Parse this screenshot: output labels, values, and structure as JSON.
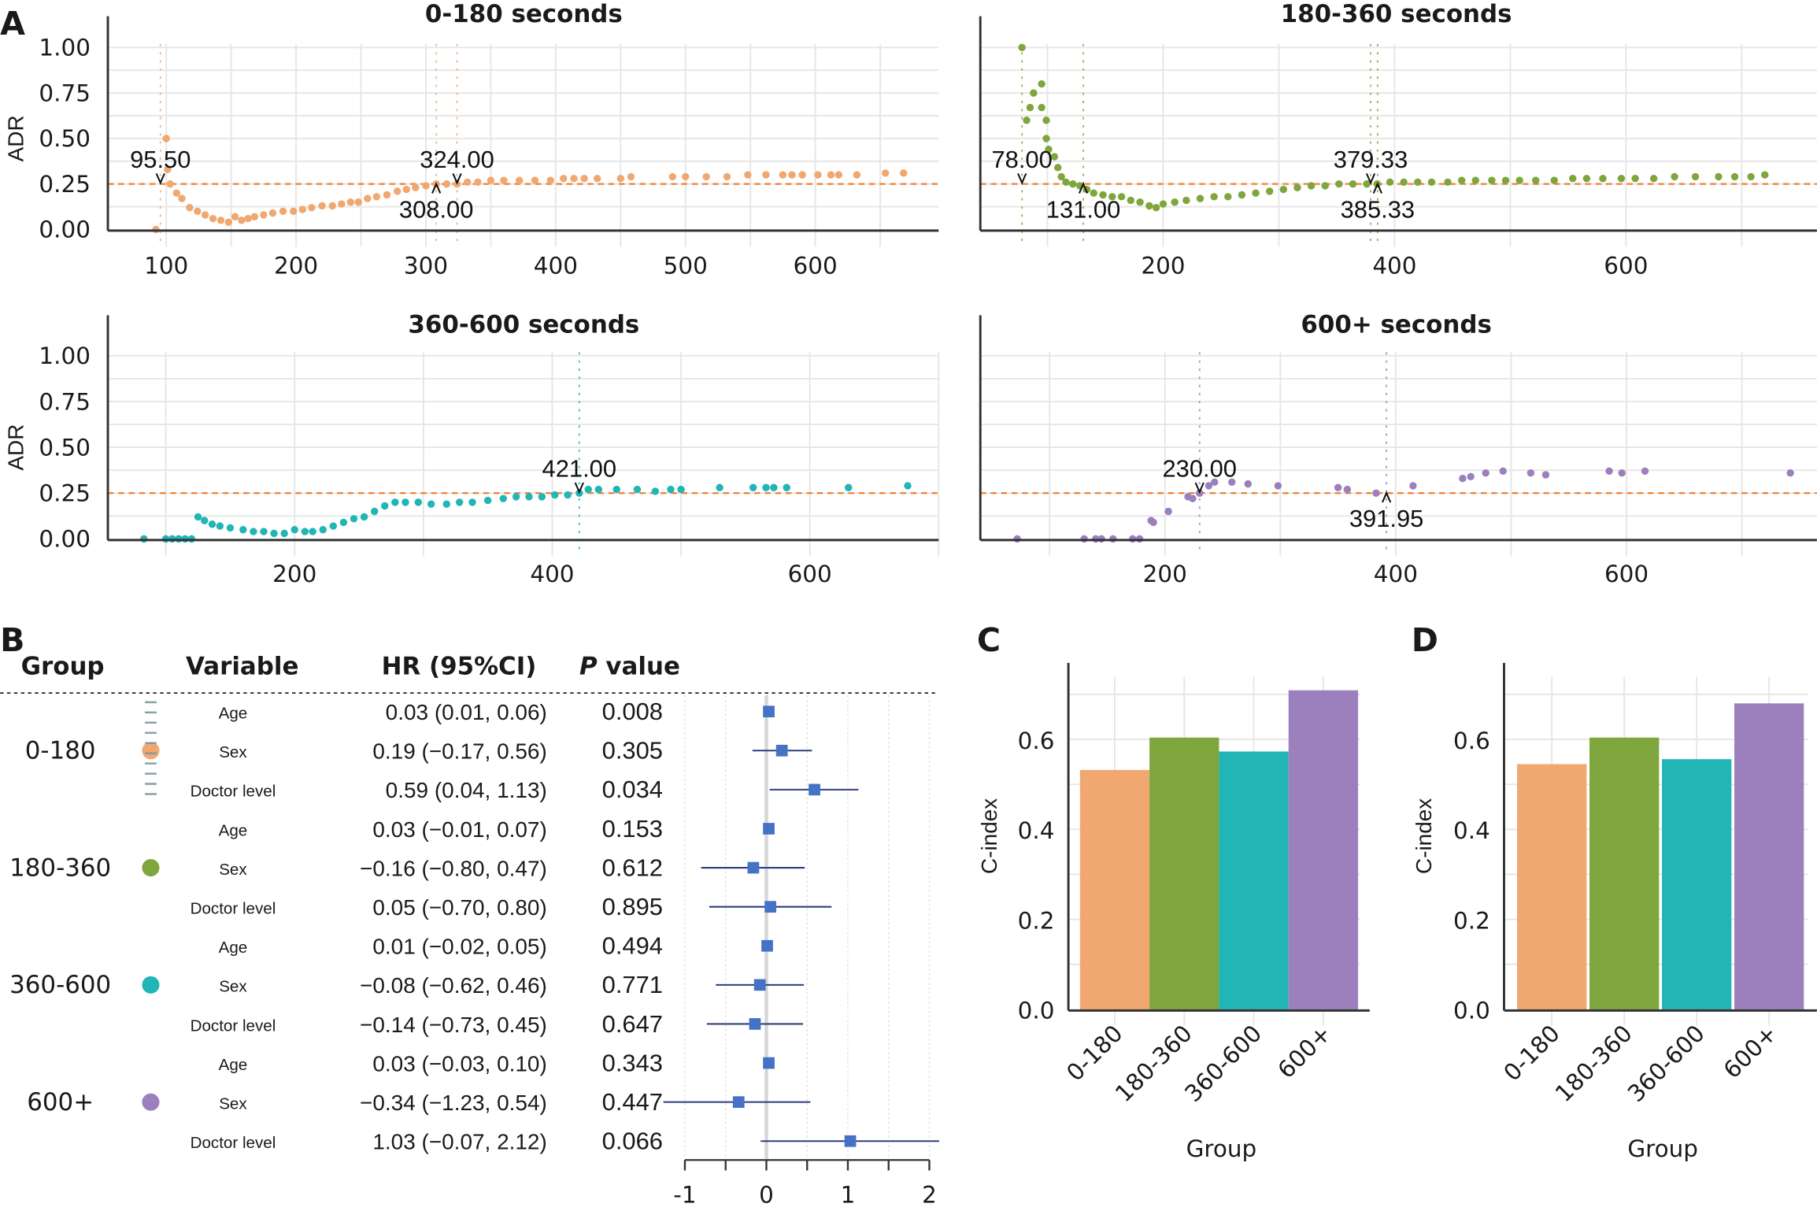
{
  "panel_labels": {
    "A": "A",
    "B": "B",
    "C": "C",
    "D": "D"
  },
  "chart_data": [
    {
      "id": "A1",
      "type": "scatter",
      "title": "0-180 seconds",
      "ylabel": "ADR",
      "xlabel": "",
      "color": "#F0A870",
      "ylim": [
        0,
        1
      ],
      "xlim": [
        55,
        695
      ],
      "xticks": [
        100,
        200,
        300,
        400,
        500,
        600
      ],
      "yticks": [
        "0.00",
        "0.25",
        "0.50",
        "0.75",
        "1.00"
      ],
      "threshold": 0.25,
      "annotations": [
        {
          "x": 95.5,
          "label": "95.50",
          "dir": "down"
        },
        {
          "x": 308.0,
          "label": "308.00",
          "dir": "up"
        },
        {
          "x": 324.0,
          "label": "324.00",
          "dir": "down"
        }
      ],
      "points": [
        [
          92,
          0.0
        ],
        [
          100,
          0.5
        ],
        [
          101,
          0.33
        ],
        [
          103,
          0.25
        ],
        [
          108,
          0.2
        ],
        [
          112,
          0.17
        ],
        [
          118,
          0.12
        ],
        [
          124,
          0.1
        ],
        [
          130,
          0.08
        ],
        [
          136,
          0.06
        ],
        [
          142,
          0.05
        ],
        [
          148,
          0.04
        ],
        [
          153,
          0.07
        ],
        [
          158,
          0.05
        ],
        [
          163,
          0.06
        ],
        [
          168,
          0.07
        ],
        [
          175,
          0.08
        ],
        [
          182,
          0.09
        ],
        [
          190,
          0.1
        ],
        [
          198,
          0.1
        ],
        [
          205,
          0.11
        ],
        [
          212,
          0.12
        ],
        [
          220,
          0.13
        ],
        [
          228,
          0.13
        ],
        [
          235,
          0.14
        ],
        [
          242,
          0.15
        ],
        [
          248,
          0.15
        ],
        [
          255,
          0.17
        ],
        [
          262,
          0.18
        ],
        [
          270,
          0.19
        ],
        [
          278,
          0.21
        ],
        [
          285,
          0.22
        ],
        [
          292,
          0.23
        ],
        [
          300,
          0.24
        ],
        [
          308,
          0.25
        ],
        [
          316,
          0.25
        ],
        [
          324,
          0.25
        ],
        [
          332,
          0.26
        ],
        [
          340,
          0.26
        ],
        [
          350,
          0.27
        ],
        [
          360,
          0.27
        ],
        [
          372,
          0.27
        ],
        [
          384,
          0.27
        ],
        [
          396,
          0.27
        ],
        [
          406,
          0.28
        ],
        [
          414,
          0.28
        ],
        [
          422,
          0.28
        ],
        [
          432,
          0.28
        ],
        [
          450,
          0.28
        ],
        [
          458,
          0.29
        ],
        [
          490,
          0.29
        ],
        [
          500,
          0.29
        ],
        [
          516,
          0.29
        ],
        [
          532,
          0.29
        ],
        [
          548,
          0.3
        ],
        [
          562,
          0.3
        ],
        [
          575,
          0.3
        ],
        [
          582,
          0.3
        ],
        [
          590,
          0.3
        ],
        [
          602,
          0.3
        ],
        [
          612,
          0.3
        ],
        [
          618,
          0.3
        ],
        [
          632,
          0.3
        ],
        [
          654,
          0.31
        ],
        [
          668,
          0.31
        ]
      ]
    },
    {
      "id": "A2",
      "type": "scatter",
      "title": "180-360 seconds",
      "ylabel": "",
      "xlabel": "",
      "color": "#7FA63D",
      "ylim": [
        0,
        1
      ],
      "xlim": [
        42,
        765
      ],
      "xticks": [
        200,
        400,
        600
      ],
      "yticks": [],
      "threshold": 0.25,
      "annotations": [
        {
          "x": 78.0,
          "label": "78.00",
          "dir": "down"
        },
        {
          "x": 131.0,
          "label": "131.00",
          "dir": "up"
        },
        {
          "x": 379.33,
          "label": "379.33",
          "dir": "down"
        },
        {
          "x": 385.33,
          "label": "385.33",
          "dir": "up"
        }
      ],
      "points": [
        [
          78,
          1.0
        ],
        [
          82,
          0.6
        ],
        [
          85,
          0.67
        ],
        [
          88,
          0.75
        ],
        [
          95,
          0.8
        ],
        [
          95,
          0.67
        ],
        [
          99,
          0.6
        ],
        [
          99,
          0.5
        ],
        [
          101,
          0.44
        ],
        [
          106,
          0.4
        ],
        [
          109,
          0.34
        ],
        [
          112,
          0.29
        ],
        [
          116,
          0.26
        ],
        [
          122,
          0.25
        ],
        [
          128,
          0.24
        ],
        [
          134,
          0.22
        ],
        [
          140,
          0.2
        ],
        [
          148,
          0.19
        ],
        [
          156,
          0.18
        ],
        [
          164,
          0.18
        ],
        [
          172,
          0.16
        ],
        [
          180,
          0.15
        ],
        [
          188,
          0.13
        ],
        [
          194,
          0.12
        ],
        [
          200,
          0.14
        ],
        [
          210,
          0.15
        ],
        [
          220,
          0.16
        ],
        [
          232,
          0.17
        ],
        [
          244,
          0.18
        ],
        [
          256,
          0.18
        ],
        [
          268,
          0.19
        ],
        [
          280,
          0.2
        ],
        [
          292,
          0.21
        ],
        [
          304,
          0.22
        ],
        [
          316,
          0.23
        ],
        [
          328,
          0.24
        ],
        [
          340,
          0.24
        ],
        [
          352,
          0.25
        ],
        [
          364,
          0.25
        ],
        [
          376,
          0.25
        ],
        [
          385,
          0.25
        ],
        [
          396,
          0.26
        ],
        [
          408,
          0.26
        ],
        [
          420,
          0.26
        ],
        [
          432,
          0.26
        ],
        [
          446,
          0.26
        ],
        [
          458,
          0.27
        ],
        [
          470,
          0.27
        ],
        [
          484,
          0.27
        ],
        [
          496,
          0.27
        ],
        [
          508,
          0.27
        ],
        [
          522,
          0.27
        ],
        [
          538,
          0.27
        ],
        [
          554,
          0.28
        ],
        [
          566,
          0.28
        ],
        [
          580,
          0.28
        ],
        [
          596,
          0.28
        ],
        [
          608,
          0.28
        ],
        [
          624,
          0.28
        ],
        [
          642,
          0.29
        ],
        [
          660,
          0.29
        ],
        [
          680,
          0.29
        ],
        [
          694,
          0.29
        ],
        [
          708,
          0.29
        ],
        [
          720,
          0.3
        ]
      ]
    },
    {
      "id": "A3",
      "type": "scatter",
      "title": "360-600 seconds",
      "ylabel": "ADR",
      "xlabel": "",
      "color": "#22B5B5",
      "ylim": [
        0,
        1
      ],
      "xlim": [
        55,
        700
      ],
      "xticks": [
        200,
        400,
        600
      ],
      "yticks": [
        "0.00",
        "0.25",
        "0.50",
        "0.75",
        "1.00"
      ],
      "threshold": 0.25,
      "annotations": [
        {
          "x": 421.0,
          "label": "421.00",
          "dir": "down"
        }
      ],
      "points": [
        [
          83,
          0.0
        ],
        [
          100,
          0.0
        ],
        [
          105,
          0.0
        ],
        [
          110,
          0.0
        ],
        [
          115,
          0.0
        ],
        [
          120,
          0.0
        ],
        [
          125,
          0.12
        ],
        [
          130,
          0.1
        ],
        [
          136,
          0.08
        ],
        [
          142,
          0.07
        ],
        [
          150,
          0.06
        ],
        [
          160,
          0.05
        ],
        [
          168,
          0.04
        ],
        [
          176,
          0.04
        ],
        [
          184,
          0.03
        ],
        [
          192,
          0.03
        ],
        [
          200,
          0.05
        ],
        [
          208,
          0.04
        ],
        [
          214,
          0.04
        ],
        [
          222,
          0.05
        ],
        [
          230,
          0.07
        ],
        [
          238,
          0.09
        ],
        [
          246,
          0.11
        ],
        [
          254,
          0.12
        ],
        [
          262,
          0.15
        ],
        [
          270,
          0.18
        ],
        [
          278,
          0.2
        ],
        [
          286,
          0.2
        ],
        [
          296,
          0.2
        ],
        [
          306,
          0.19
        ],
        [
          318,
          0.19
        ],
        [
          328,
          0.2
        ],
        [
          338,
          0.2
        ],
        [
          350,
          0.21
        ],
        [
          362,
          0.22
        ],
        [
          372,
          0.23
        ],
        [
          382,
          0.23
        ],
        [
          392,
          0.23
        ],
        [
          402,
          0.24
        ],
        [
          412,
          0.24
        ],
        [
          421,
          0.25
        ],
        [
          428,
          0.27
        ],
        [
          436,
          0.27
        ],
        [
          450,
          0.27
        ],
        [
          466,
          0.27
        ],
        [
          480,
          0.26
        ],
        [
          492,
          0.27
        ],
        [
          500,
          0.27
        ],
        [
          530,
          0.28
        ],
        [
          556,
          0.28
        ],
        [
          566,
          0.28
        ],
        [
          572,
          0.28
        ],
        [
          582,
          0.28
        ],
        [
          630,
          0.28
        ],
        [
          676,
          0.29
        ]
      ]
    },
    {
      "id": "A4",
      "type": "scatter",
      "title": "600+ seconds",
      "ylabel": "",
      "xlabel": "",
      "color": "#9B80BD",
      "ylim": [
        0,
        1
      ],
      "xlim": [
        40,
        765
      ],
      "xticks": [
        200,
        400,
        600
      ],
      "yticks": [],
      "threshold": 0.25,
      "annotations": [
        {
          "x": 230.0,
          "label": "230.00",
          "dir": "down"
        },
        {
          "x": 391.95,
          "label": "391.95",
          "dir": "up"
        }
      ],
      "points": [
        [
          72,
          0.0
        ],
        [
          130,
          0.0
        ],
        [
          140,
          0.0
        ],
        [
          145,
          0.0
        ],
        [
          155,
          0.0
        ],
        [
          172,
          0.0
        ],
        [
          178,
          0.0
        ],
        [
          188,
          0.1
        ],
        [
          190,
          0.09
        ],
        [
          203,
          0.15
        ],
        [
          220,
          0.23
        ],
        [
          224,
          0.22
        ],
        [
          230,
          0.25
        ],
        [
          238,
          0.29
        ],
        [
          243,
          0.31
        ],
        [
          258,
          0.31
        ],
        [
          272,
          0.3
        ],
        [
          298,
          0.29
        ],
        [
          350,
          0.28
        ],
        [
          358,
          0.27
        ],
        [
          383,
          0.25
        ],
        [
          415,
          0.29
        ],
        [
          458,
          0.33
        ],
        [
          465,
          0.34
        ],
        [
          478,
          0.36
        ],
        [
          493,
          0.37
        ],
        [
          517,
          0.36
        ],
        [
          530,
          0.35
        ],
        [
          585,
          0.37
        ],
        [
          596,
          0.36
        ],
        [
          616,
          0.37
        ],
        [
          742,
          0.36
        ]
      ]
    },
    {
      "id": "B",
      "type": "table",
      "headers": {
        "group": "Group",
        "variable": "Variable",
        "hr": "HR (95%CI)",
        "p_italic": "P",
        "p_rest": " value"
      },
      "axis": {
        "xlim": [
          -1,
          2
        ],
        "ticks": [
          "-1",
          "0",
          "1",
          "2"
        ],
        "ref": 0
      },
      "groups": [
        {
          "name": "0-180",
          "color": "#F0A870",
          "rows": [
            {
              "variable": "Age",
              "hr_text": "0.03 (0.01, 0.06)",
              "hr": 0.03,
              "lo": 0.01,
              "hi": 0.06,
              "p": "0.008",
              "significant": true
            },
            {
              "variable": "Sex",
              "hr_text": "0.19 (−0.17, 0.56)",
              "hr": 0.19,
              "lo": -0.17,
              "hi": 0.56,
              "p": "0.305",
              "significant": false
            },
            {
              "variable": "Doctor level",
              "hr_text": "0.59 (0.04, 1.13)",
              "hr": 0.59,
              "lo": 0.04,
              "hi": 1.13,
              "p": "0.034",
              "significant": true
            }
          ]
        },
        {
          "name": "180-360",
          "color": "#7FA63D",
          "rows": [
            {
              "variable": "Age",
              "hr_text": "0.03 (−0.01, 0.07)",
              "hr": 0.03,
              "lo": -0.01,
              "hi": 0.07,
              "p": "0.153",
              "significant": false
            },
            {
              "variable": "Sex",
              "hr_text": "−0.16 (−0.80, 0.47)",
              "hr": -0.16,
              "lo": -0.8,
              "hi": 0.47,
              "p": "0.612",
              "significant": false
            },
            {
              "variable": "Doctor level",
              "hr_text": "0.05 (−0.70, 0.80)",
              "hr": 0.05,
              "lo": -0.7,
              "hi": 0.8,
              "p": "0.895",
              "significant": false
            }
          ]
        },
        {
          "name": "360-600",
          "color": "#22B5B5",
          "rows": [
            {
              "variable": "Age",
              "hr_text": "0.01 (−0.02, 0.05)",
              "hr": 0.01,
              "lo": -0.02,
              "hi": 0.05,
              "p": "0.494",
              "significant": false
            },
            {
              "variable": "Sex",
              "hr_text": "−0.08 (−0.62, 0.46)",
              "hr": -0.08,
              "lo": -0.62,
              "hi": 0.46,
              "p": "0.771",
              "significant": false
            },
            {
              "variable": "Doctor level",
              "hr_text": "−0.14 (−0.73, 0.45)",
              "hr": -0.14,
              "lo": -0.73,
              "hi": 0.45,
              "p": "0.647",
              "significant": false
            }
          ]
        },
        {
          "name": "600+",
          "color": "#9B80BD",
          "rows": [
            {
              "variable": "Age",
              "hr_text": "0.03 (−0.03, 0.10)",
              "hr": 0.03,
              "lo": -0.03,
              "hi": 0.1,
              "p": "0.343",
              "significant": false
            },
            {
              "variable": "Sex",
              "hr_text": "−0.34 (−1.23, 0.54)",
              "hr": -0.34,
              "lo": -1.23,
              "hi": 0.54,
              "p": "0.447",
              "significant": false
            },
            {
              "variable": "Doctor level",
              "hr_text": "1.03 (−0.07, 2.12)",
              "hr": 1.03,
              "lo": -0.07,
              "hi": 2.12,
              "p": "0.066",
              "significant": false
            }
          ]
        }
      ],
      "marker_color": "#4472C4",
      "ci_color": "#2E3E7E",
      "significant_color": "#F26B1D"
    },
    {
      "id": "C",
      "type": "bar",
      "categories": [
        "0-180",
        "180-360",
        "360-600",
        "600+"
      ],
      "values": [
        0.532,
        0.604,
        0.573,
        0.709
      ],
      "colors": [
        "#F0A870",
        "#7FA63D",
        "#22B5B5",
        "#9B80BD"
      ],
      "xlabel": "Group",
      "ylabel": "C-index",
      "ylim": [
        0,
        0.77
      ],
      "yticks": [
        "0.0",
        "0.2",
        "0.4",
        "0.6"
      ]
    },
    {
      "id": "D",
      "type": "bar",
      "categories": [
        "0-180",
        "180-360",
        "360-600",
        "600+"
      ],
      "values": [
        0.545,
        0.604,
        0.556,
        0.68
      ],
      "colors": [
        "#F0A870",
        "#7FA63D",
        "#22B5B5",
        "#9B80BD"
      ],
      "xlabel": "Group",
      "ylabel": "C-index",
      "ylim": [
        0,
        0.77
      ],
      "yticks": [
        "0.0",
        "0.2",
        "0.4",
        "0.6"
      ]
    }
  ]
}
